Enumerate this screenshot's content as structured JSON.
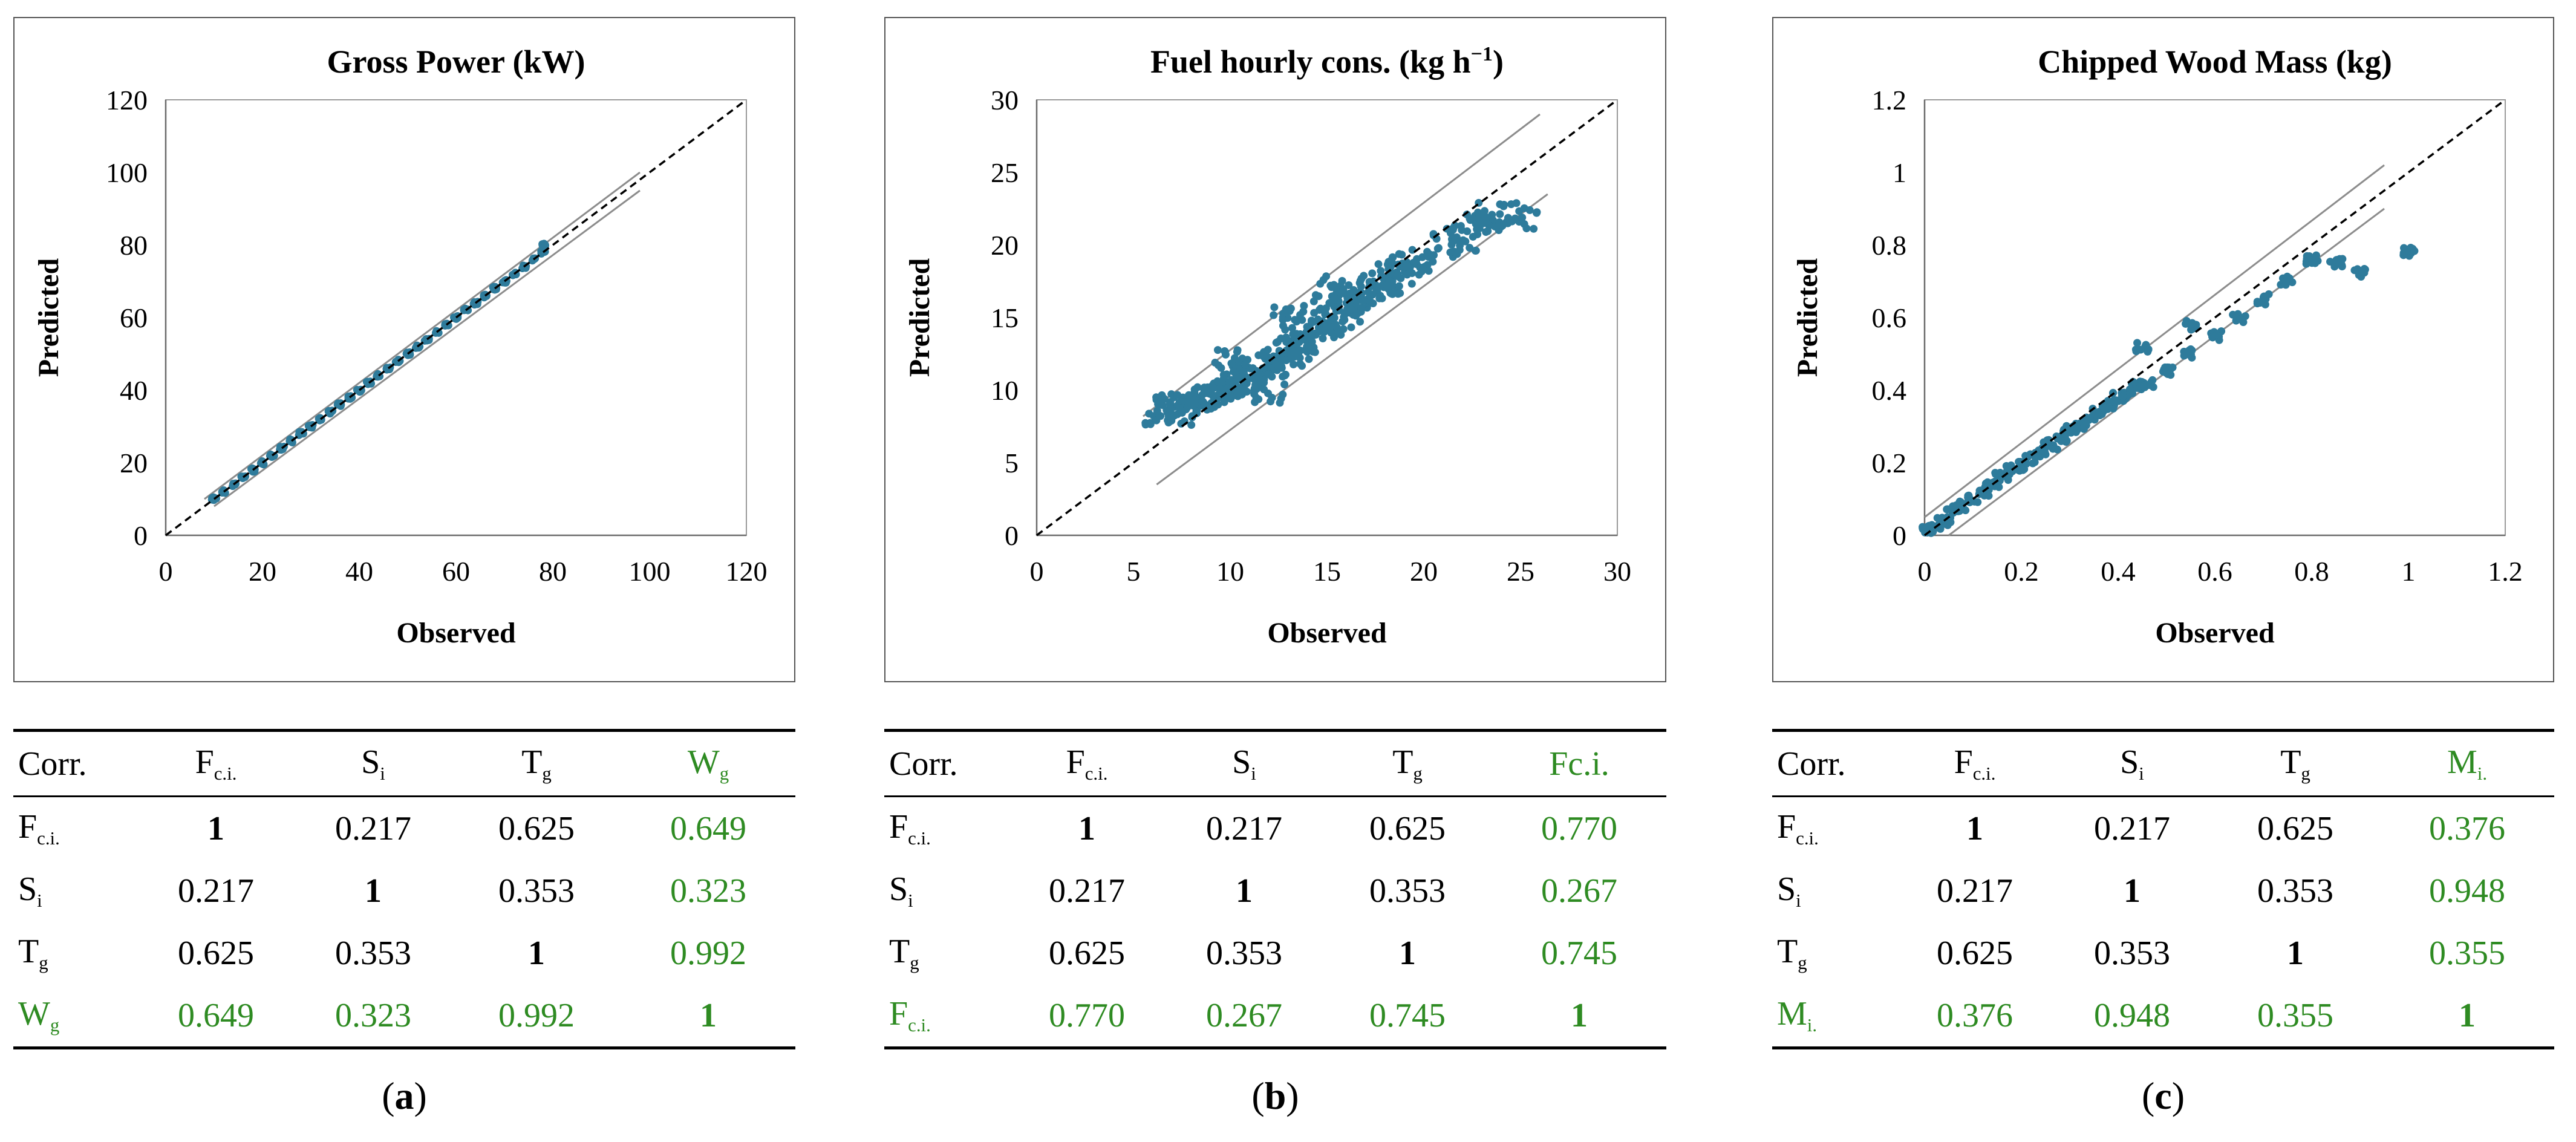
{
  "panels": [
    {
      "caption_letter": "a",
      "chart": {
        "title": "Gross Power (kW)",
        "title_sup": "",
        "title_end": "",
        "xlabel": "Observed",
        "ylabel": "Predicted",
        "ticks": [
          "0",
          "20",
          "40",
          "60",
          "80",
          "100",
          "120"
        ]
      },
      "table": {
        "header": [
          "Corr.",
          "F",
          "S",
          "T",
          "W"
        ],
        "header_subs": [
          "",
          "c.i.",
          "i",
          "g",
          "g"
        ],
        "rows": [
          {
            "label": "F",
            "sub": "c.i.",
            "values": [
              "1",
              "0.217",
              "0.625",
              "0.649"
            ]
          },
          {
            "label": "S",
            "sub": "i",
            "values": [
              "0.217",
              "1",
              "0.353",
              "0.323"
            ]
          },
          {
            "label": "T",
            "sub": "g",
            "values": [
              "0.625",
              "0.353",
              "1",
              "0.992"
            ]
          },
          {
            "label": "W",
            "sub": "g",
            "values": [
              "0.649",
              "0.323",
              "0.992",
              "1"
            ]
          }
        ]
      }
    },
    {
      "caption_letter": "b",
      "chart": {
        "title": "Fuel hourly cons. (kg h",
        "title_sup": "−1",
        "title_end": ")",
        "xlabel": "Observed",
        "ylabel": "Predicted",
        "ticks": [
          "0",
          "5",
          "10",
          "15",
          "20",
          "25",
          "30"
        ]
      },
      "table": {
        "header": [
          "Corr.",
          "F",
          "S",
          "T",
          "Fc.i."
        ],
        "header_subs": [
          "",
          "c.i.",
          "i",
          "g",
          ""
        ],
        "rows": [
          {
            "label": "F",
            "sub": "c.i.",
            "values": [
              "1",
              "0.217",
              "0.625",
              "0.770"
            ]
          },
          {
            "label": "S",
            "sub": "i",
            "values": [
              "0.217",
              "1",
              "0.353",
              "0.267"
            ]
          },
          {
            "label": "T",
            "sub": "g",
            "values": [
              "0.625",
              "0.353",
              "1",
              "0.745"
            ]
          },
          {
            "label": "F",
            "sub": "c.i.",
            "values": [
              "0.770",
              "0.267",
              "0.745",
              "1"
            ]
          }
        ]
      }
    },
    {
      "caption_letter": "c",
      "chart": {
        "title": "Chipped Wood Mass (kg)",
        "title_sup": "",
        "title_end": "",
        "xlabel": "Observed",
        "ylabel": "Predicted",
        "ticks": [
          "0",
          "0.2",
          "0.4",
          "0.6",
          "0.8",
          "1",
          "1.2"
        ]
      },
      "table": {
        "header": [
          "Corr.",
          "F",
          "S",
          "T",
          "M"
        ],
        "header_subs": [
          "",
          "c.i.",
          "i",
          "g",
          "i."
        ],
        "rows": [
          {
            "label": "F",
            "sub": "c.i.",
            "values": [
              "1",
              "0.217",
              "0.625",
              "0.376"
            ]
          },
          {
            "label": "S",
            "sub": "i",
            "values": [
              "0.217",
              "1",
              "0.353",
              "0.948"
            ]
          },
          {
            "label": "T",
            "sub": "g",
            "values": [
              "0.625",
              "0.353",
              "1",
              "0.355"
            ]
          },
          {
            "label": "M",
            "sub": "i.",
            "values": [
              "0.376",
              "0.948",
              "0.355",
              "1"
            ]
          }
        ]
      }
    }
  ],
  "chart_data": [
    {
      "type": "scatter",
      "title": "Gross Power (kW)",
      "xlabel": "Observed",
      "ylabel": "Predicted",
      "xlim": [
        0,
        120
      ],
      "ylim": [
        0,
        120
      ],
      "identity_line": [
        [
          0,
          0
        ],
        [
          120,
          120
        ]
      ],
      "bound_lines": [
        [
          [
            8,
            10
          ],
          [
            98,
            100
          ]
        ],
        [
          [
            10,
            8
          ],
          [
            98,
            95
          ]
        ]
      ],
      "points": [
        [
          10,
          10
        ],
        [
          12,
          12
        ],
        [
          14,
          14
        ],
        [
          16,
          16
        ],
        [
          18,
          18
        ],
        [
          20,
          20
        ],
        [
          22,
          22
        ],
        [
          24,
          24
        ],
        [
          26,
          26
        ],
        [
          28,
          28
        ],
        [
          30,
          30
        ],
        [
          32,
          32
        ],
        [
          34,
          34
        ],
        [
          36,
          36
        ],
        [
          38,
          38
        ],
        [
          40,
          40
        ],
        [
          42,
          42
        ],
        [
          44,
          44
        ],
        [
          46,
          46
        ],
        [
          48,
          48
        ],
        [
          50,
          50
        ],
        [
          52,
          52
        ],
        [
          54,
          54
        ],
        [
          56,
          56
        ],
        [
          58,
          58
        ],
        [
          60,
          60
        ],
        [
          62,
          62
        ],
        [
          64,
          64
        ],
        [
          66,
          66
        ],
        [
          68,
          68
        ],
        [
          70,
          70
        ],
        [
          72,
          72
        ],
        [
          74,
          74
        ],
        [
          76,
          76
        ],
        [
          78,
          78
        ],
        [
          78,
          80
        ]
      ],
      "point_color": "#2e7b9b"
    },
    {
      "type": "scatter",
      "title": "Fuel hourly cons. (kg h−1)",
      "xlabel": "Observed",
      "ylabel": "Predicted",
      "xlim": [
        0,
        30
      ],
      "ylim": [
        0,
        30
      ],
      "identity_line": [
        [
          0,
          0
        ],
        [
          30,
          30
        ]
      ],
      "bound_lines": [
        [
          [
            5.5,
            8.2
          ],
          [
            26,
            29
          ]
        ],
        [
          [
            6.2,
            3.5
          ],
          [
            26.4,
            23.5
          ]
        ]
      ],
      "points": [
        [
          6.5,
          8.5
        ],
        [
          7,
          9
        ],
        [
          7.5,
          8.5
        ],
        [
          8,
          9
        ],
        [
          8.5,
          9.5
        ],
        [
          9,
          9.8
        ],
        [
          9.5,
          10
        ],
        [
          10,
          10.5
        ],
        [
          10.5,
          10.5
        ],
        [
          11,
          11
        ],
        [
          11.5,
          11.5
        ],
        [
          12,
          11.8
        ],
        [
          12.5,
          12.3
        ],
        [
          13,
          12.5
        ],
        [
          13.5,
          13
        ],
        [
          14,
          13.5
        ],
        [
          14.5,
          14
        ],
        [
          15,
          14.5
        ],
        [
          15.5,
          15
        ],
        [
          16,
          15.5
        ],
        [
          16.5,
          16
        ],
        [
          17,
          16.5
        ],
        [
          17.5,
          17
        ],
        [
          18,
          17.5
        ],
        [
          18.5,
          18
        ],
        [
          19,
          18.5
        ],
        [
          20,
          19
        ],
        [
          21,
          20
        ],
        [
          22,
          20.5
        ],
        [
          23,
          21.5
        ],
        [
          23.5,
          22
        ],
        [
          25,
          22
        ],
        [
          13,
          15
        ],
        [
          12,
          10
        ],
        [
          15,
          17
        ],
        [
          10,
          12
        ]
      ],
      "point_color": "#2e7b9b"
    },
    {
      "type": "scatter",
      "title": "Chipped Wood Mass (kg)",
      "xlabel": "Observed",
      "ylabel": "Predicted",
      "xlim": [
        0,
        1.2
      ],
      "ylim": [
        0,
        1.2
      ],
      "identity_line": [
        [
          0,
          0
        ],
        [
          1.2,
          1.2
        ]
      ],
      "bound_lines": [
        [
          [
            0,
            0.05
          ],
          [
            0.95,
            1.02
          ]
        ],
        [
          [
            0.05,
            0
          ],
          [
            0.95,
            0.9
          ]
        ]
      ],
      "points": [
        [
          0.01,
          0.01
        ],
        [
          0.02,
          0.02
        ],
        [
          0.04,
          0.04
        ],
        [
          0.06,
          0.07
        ],
        [
          0.08,
          0.08
        ],
        [
          0.1,
          0.1
        ],
        [
          0.12,
          0.12
        ],
        [
          0.14,
          0.14
        ],
        [
          0.16,
          0.16
        ],
        [
          0.18,
          0.18
        ],
        [
          0.2,
          0.19
        ],
        [
          0.22,
          0.21
        ],
        [
          0.24,
          0.23
        ],
        [
          0.26,
          0.25
        ],
        [
          0.28,
          0.27
        ],
        [
          0.3,
          0.29
        ],
        [
          0.32,
          0.3
        ],
        [
          0.34,
          0.32
        ],
        [
          0.36,
          0.34
        ],
        [
          0.38,
          0.36
        ],
        [
          0.4,
          0.38
        ],
        [
          0.42,
          0.39
        ],
        [
          0.44,
          0.41
        ],
        [
          0.46,
          0.42
        ],
        [
          0.5,
          0.45
        ],
        [
          0.55,
          0.5
        ],
        [
          0.6,
          0.55
        ],
        [
          0.65,
          0.6
        ],
        [
          0.7,
          0.65
        ],
        [
          0.75,
          0.7
        ],
        [
          0.8,
          0.76
        ],
        [
          0.85,
          0.75
        ],
        [
          0.9,
          0.72
        ],
        [
          1,
          0.78
        ],
        [
          0.55,
          0.58
        ],
        [
          0.45,
          0.52
        ]
      ],
      "point_color": "#2e7b9b"
    }
  ]
}
